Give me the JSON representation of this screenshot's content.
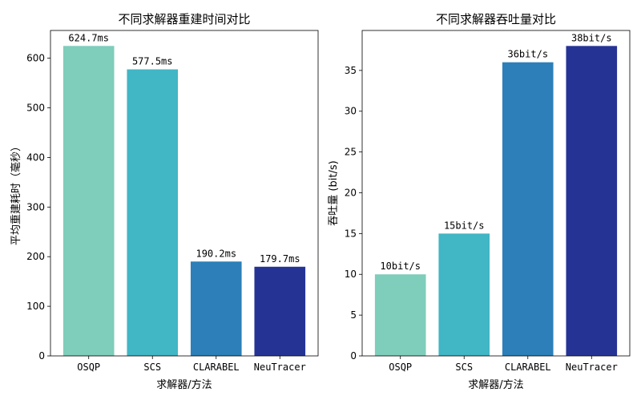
{
  "chart_data": [
    {
      "type": "bar",
      "title": "不同求解器重建时间对比",
      "xlabel": "求解器/方法",
      "ylabel": "平均重建耗时（毫秒）",
      "categories": [
        "OSQP",
        "SCS",
        "CLARABEL",
        "NeuTracer"
      ],
      "values": [
        624.7,
        577.5,
        190.2,
        179.7
      ],
      "data_labels": [
        "624.7ms",
        "577.5ms",
        "190.2ms",
        "179.7ms"
      ],
      "colors": [
        "#7fcdbb",
        "#41b6c4",
        "#2c7fb8",
        "#253494"
      ],
      "yticks": [
        0,
        100,
        200,
        300,
        400,
        500,
        600
      ],
      "ylim": [
        0,
        655.9
      ],
      "grid": false
    },
    {
      "type": "bar",
      "title": "不同求解器吞吐量对比",
      "xlabel": "求解器/方法",
      "ylabel": "吞吐量 (bit/s)",
      "categories": [
        "OSQP",
        "SCS",
        "CLARABEL",
        "NeuTracer"
      ],
      "values": [
        10,
        15,
        36,
        38
      ],
      "data_labels": [
        "10bit/s",
        "15bit/s",
        "36bit/s",
        "38bit/s"
      ],
      "colors": [
        "#7fcdbb",
        "#41b6c4",
        "#2c7fb8",
        "#253494"
      ],
      "yticks": [
        0,
        5,
        10,
        15,
        20,
        25,
        30,
        35
      ],
      "ylim": [
        0,
        39.9
      ],
      "grid": false
    }
  ]
}
